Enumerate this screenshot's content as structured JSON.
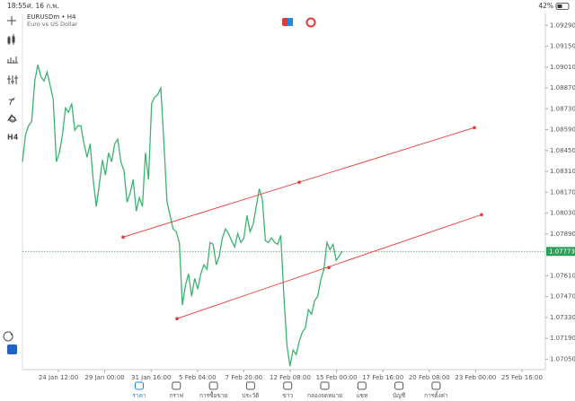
{
  "status_bar": {
    "time": "18:55",
    "date": "ศ. 16 ก.พ.",
    "battery": "42%"
  },
  "chart_data": {
    "type": "line",
    "title": "EURUSDm • H4",
    "subtitle": "Euro vs US Dollar",
    "color": "#3cb371",
    "values": [
      1.08375,
      1.08556,
      1.08616,
      1.08646,
      1.08917,
      1.09025,
      1.08947,
      1.08917,
      1.08977,
      1.08887,
      1.08796,
      1.08375,
      1.08435,
      1.08556,
      1.08736,
      1.08706,
      1.08766,
      1.08586,
      1.08616,
      1.08616,
      1.08495,
      1.08405,
      1.08495,
      1.08255,
      1.08074,
      1.08225,
      1.08387,
      1.08285,
      1.08435,
      1.08375,
      1.08495,
      1.08526,
      1.08375,
      1.08315,
      1.08104,
      1.08164,
      1.08255,
      1.08044,
      1.08134,
      1.08074,
      1.08435,
      1.08255,
      1.08766,
      1.08808,
      1.08827,
      1.08869,
      1.08495,
      1.08104,
      1.08014,
      1.07924,
      1.07905,
      1.07833,
      1.07412,
      1.07544,
      1.07623,
      1.07472,
      1.07592,
      1.0752,
      1.07623,
      1.07683,
      1.07653,
      1.07833,
      1.07821,
      1.07683,
      1.07743,
      1.07863,
      1.07924,
      1.07893,
      1.07845,
      1.07803,
      1.07893,
      1.07833,
      1.07863,
      1.08014,
      1.07905,
      1.07954,
      1.08074,
      1.08194,
      1.08122,
      1.07845,
      1.07833,
      1.07863,
      1.07833,
      1.07821,
      1.07881,
      1.07472,
      1.07141,
      1.07002,
      1.07111,
      1.07081,
      1.07171,
      1.07231,
      1.07261,
      1.07382,
      1.07352,
      1.07442,
      1.07472,
      1.0758,
      1.07653,
      1.07833,
      1.07785,
      1.07821,
      1.07713,
      1.07743,
      1.07773
    ],
    "ylim": [
      1.0698,
      1.0937
    ],
    "yticks": [
      {
        "value": 1.0705,
        "label": "1.07050"
      },
      {
        "value": 1.0719,
        "label": "1.07190"
      },
      {
        "value": 1.0733,
        "label": "1.07330"
      },
      {
        "value": 1.0747,
        "label": "1.07470"
      },
      {
        "value": 1.0761,
        "label": "1.07610"
      },
      {
        "value": 1.0789,
        "label": "1.07890"
      },
      {
        "value": 1.0803,
        "label": "1.08030"
      },
      {
        "value": 1.0817,
        "label": "1.08170"
      },
      {
        "value": 1.0831,
        "label": "1.08310"
      },
      {
        "value": 1.0845,
        "label": "1.08450"
      },
      {
        "value": 1.0859,
        "label": "1.08590"
      },
      {
        "value": 1.0873,
        "label": "1.08730"
      },
      {
        "value": 1.0887,
        "label": "1.08870"
      },
      {
        "value": 1.0901,
        "label": "1.09010"
      },
      {
        "value": 1.0915,
        "label": "1.09150"
      },
      {
        "value": 1.0929,
        "label": "1.09290"
      }
    ],
    "x_labels": [
      "24 Jan 12:00",
      "29 Jan 00:00",
      "31 Jan 16:00",
      "5 Feb 04:00",
      "7 Feb 20:00",
      "12 Feb 08:00",
      "15 Feb 00:00",
      "17 Feb 16:00",
      "20 Feb 08:00",
      "23 Feb 00:00",
      "25 Feb 16:00"
    ],
    "current_price": 1.07773,
    "current_price_color": "#2e9e5b",
    "trend_lines": [
      {
        "color": "#e53935",
        "values": [
          1.07869,
          1.08237,
          1.08604
        ]
      },
      {
        "color": "#e53935",
        "values": [
          1.07322,
          1.07665,
          1.0802
        ]
      }
    ]
  },
  "nav": {
    "items": [
      "ราคา",
      "กราฟ",
      "การซื้อขาย",
      "ประวัติ",
      "ข่าว",
      "กล่องจดหมาย",
      "แชท",
      "บัญชี",
      "การตั้งค่า"
    ],
    "active": 0
  }
}
